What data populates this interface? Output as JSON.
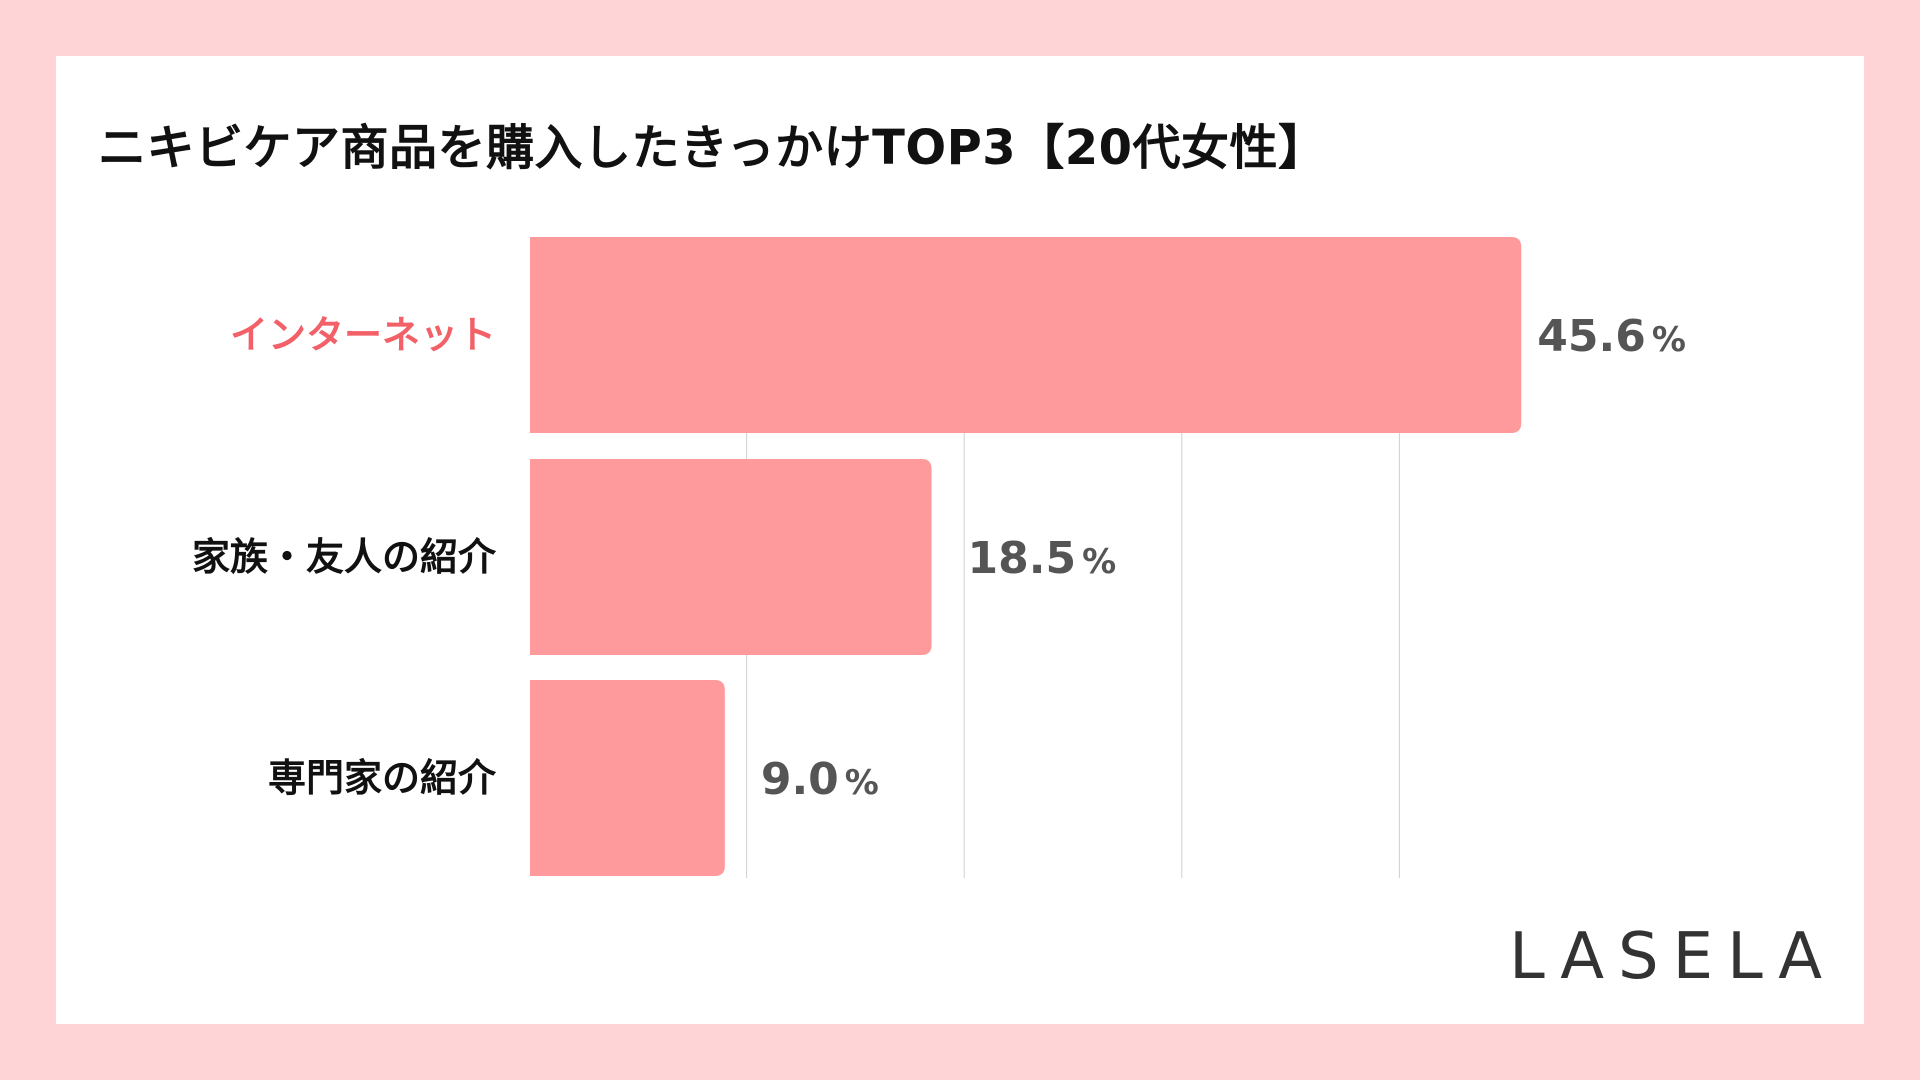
{
  "brand": {
    "logo_text": "LASELA"
  },
  "colors": {
    "page_background": "#ffd4d6",
    "card_background": "#ffffff",
    "bar": "#ff9a9c",
    "highlight_label": "#f26068",
    "label": "#111111",
    "value": "#555555",
    "gridline": "#d0d0d0"
  },
  "chart_data": {
    "type": "bar",
    "orientation": "horizontal",
    "title": "ニキビケア商品を購入したきっかけTOP3【20代女性】",
    "categories": [
      "インターネット",
      "家族・友人の紹介",
      "専門家の紹介"
    ],
    "values": [
      45.6,
      18.5,
      9.0
    ],
    "value_labels": [
      "45.6",
      "18.5",
      "9.0"
    ],
    "unit": "%",
    "highlight_index": 0,
    "xlim": [
      0,
      50
    ],
    "grid_step": 10,
    "grid": true,
    "xlabel": "",
    "ylabel": ""
  }
}
